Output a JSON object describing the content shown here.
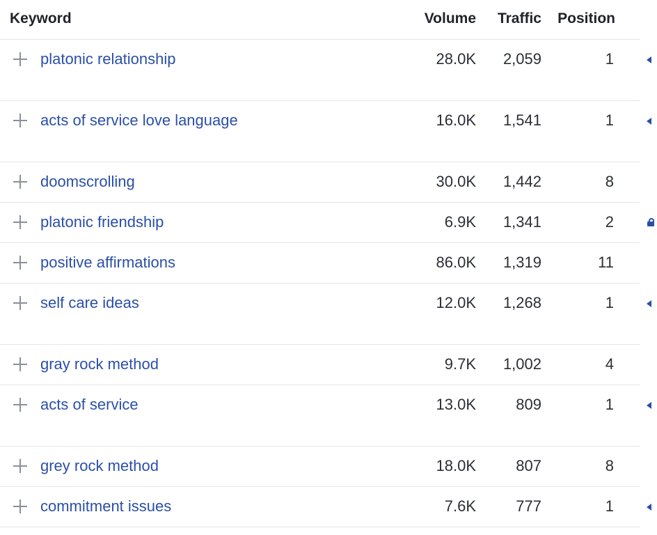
{
  "header": {
    "keyword": "Keyword",
    "volume": "Volume",
    "traffic": "Traffic",
    "position": "Position"
  },
  "rows": [
    {
      "keyword": "platonic relationship",
      "volume": "28.0K",
      "traffic": "2,059",
      "position": "1",
      "marker": "serp-arrow-icon",
      "tall": true
    },
    {
      "keyword": "acts of service love language",
      "volume": "16.0K",
      "traffic": "1,541",
      "position": "1",
      "marker": "serp-arrow-icon",
      "tall": true
    },
    {
      "keyword": "doomscrolling",
      "volume": "30.0K",
      "traffic": "1,442",
      "position": "8",
      "marker": "",
      "tall": false
    },
    {
      "keyword": "platonic friendship",
      "volume": "6.9K",
      "traffic": "1,341",
      "position": "2",
      "marker": "lock-icon",
      "tall": false
    },
    {
      "keyword": "positive affirmations",
      "volume": "86.0K",
      "traffic": "1,319",
      "position": "11",
      "marker": "",
      "tall": false
    },
    {
      "keyword": "self care ideas",
      "volume": "12.0K",
      "traffic": "1,268",
      "position": "1",
      "marker": "serp-arrow-icon",
      "tall": true
    },
    {
      "keyword": "gray rock method",
      "volume": "9.7K",
      "traffic": "1,002",
      "position": "4",
      "marker": "",
      "tall": false
    },
    {
      "keyword": "acts of service",
      "volume": "13.0K",
      "traffic": "809",
      "position": "1",
      "marker": "serp-arrow-icon",
      "tall": true
    },
    {
      "keyword": "grey rock method",
      "volume": "18.0K",
      "traffic": "807",
      "position": "8",
      "marker": "",
      "tall": false
    },
    {
      "keyword": "commitment issues",
      "volume": "7.6K",
      "traffic": "777",
      "position": "1",
      "marker": "serp-arrow-icon",
      "tall": false
    }
  ],
  "colors": {
    "keyword_link": "#2b4fa8",
    "plus_icon": "#8a9098",
    "row_divider": "#e5e7ea"
  }
}
